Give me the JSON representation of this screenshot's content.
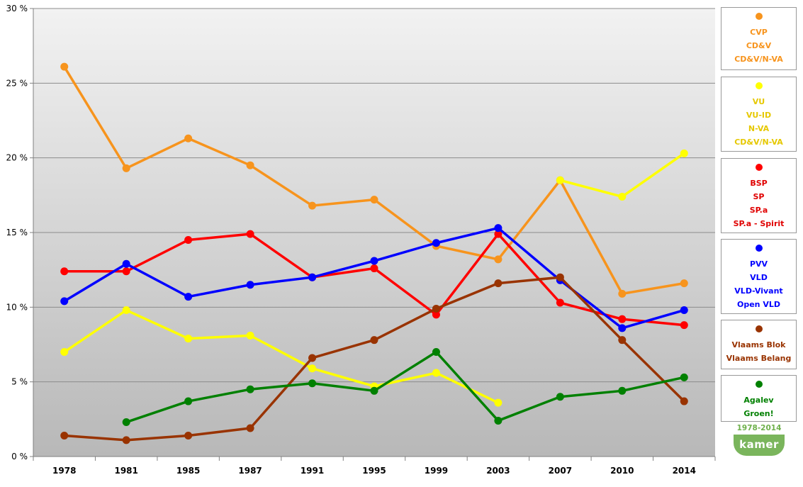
{
  "chart_data": {
    "type": "line",
    "title": "",
    "xlabel": "",
    "ylabel": "",
    "categories": [
      "1978",
      "1981",
      "1985",
      "1987",
      "1991",
      "1995",
      "1999",
      "2003",
      "2007",
      "2010",
      "2014"
    ],
    "ylim": [
      0,
      30
    ],
    "yticks": [
      0,
      5,
      10,
      15,
      20,
      25,
      30
    ],
    "ytick_labels": [
      "0 %",
      "5 %",
      "10 %",
      "15 %",
      "20 %",
      "25 %",
      "30 %"
    ],
    "grid": true,
    "legend_placement": "right",
    "series": [
      {
        "name": "CVP / CD&V / CD&V/N-VA",
        "color": "#f7941d",
        "values": [
          26.1,
          19.3,
          21.3,
          19.5,
          16.8,
          17.2,
          14.1,
          13.2,
          18.5,
          10.9,
          11.6
        ]
      },
      {
        "name": "VU / VU-ID / N-VA / CD&V/N-VA",
        "color": "#ffff00",
        "values": [
          7.0,
          9.8,
          7.9,
          8.1,
          5.9,
          4.7,
          5.6,
          3.6,
          null,
          null,
          null
        ]
      },
      {
        "name": "VU / VU-ID / N-VA / CD&V/N-VA",
        "color": "#ffff00",
        "values": [
          null,
          null,
          null,
          null,
          null,
          null,
          null,
          null,
          18.5,
          17.4,
          20.3
        ]
      },
      {
        "name": "BSP / SP / SP.a / SP.a - Spirit",
        "color": "#ff0000",
        "values": [
          12.4,
          12.4,
          14.5,
          14.9,
          12.0,
          12.6,
          9.5,
          14.9,
          10.3,
          9.2,
          8.8
        ]
      },
      {
        "name": "PVV / VLD / VLD-Vivant / Open VLD",
        "color": "#0000ff",
        "values": [
          10.4,
          12.9,
          10.7,
          11.5,
          12.0,
          13.1,
          14.3,
          15.3,
          11.8,
          8.6,
          9.8
        ]
      },
      {
        "name": "Vlaams Blok / Vlaams Belang",
        "color": "#993300",
        "values": [
          1.4,
          1.1,
          1.4,
          1.9,
          6.6,
          7.8,
          9.9,
          11.6,
          12.0,
          7.8,
          3.7
        ]
      },
      {
        "name": "Agalev / Groen!",
        "color": "#008000",
        "values": [
          null,
          2.3,
          3.7,
          4.5,
          4.9,
          4.4,
          7.0,
          2.4,
          4.0,
          4.4,
          5.3
        ]
      }
    ]
  },
  "legend": {
    "cvp": {
      "color": "#f7941d",
      "lines": [
        "CVP",
        "CD&V",
        "CD&V/N-VA"
      ]
    },
    "vu": {
      "color": "#ffff00",
      "text_color": "#e6c800",
      "lines": [
        "VU",
        "VU-ID",
        "N-VA",
        "CD&V/N-VA"
      ]
    },
    "bsp": {
      "color": "#ff0000",
      "text_color": "#e00000",
      "lines": [
        "BSP",
        "SP",
        "SP.a",
        "SP.a - Spirit"
      ]
    },
    "pvv": {
      "color": "#0000ff",
      "lines": [
        "PVV",
        "VLD",
        "VLD-Vivant",
        "Open VLD"
      ]
    },
    "vb": {
      "color": "#993300",
      "lines": [
        "Vlaams Blok",
        "Vlaams Belang"
      ]
    },
    "groen": {
      "color": "#008000",
      "lines": [
        "Agalev",
        "Groen!"
      ]
    }
  },
  "badge": {
    "range": "1978-2014",
    "label": "kamer"
  }
}
